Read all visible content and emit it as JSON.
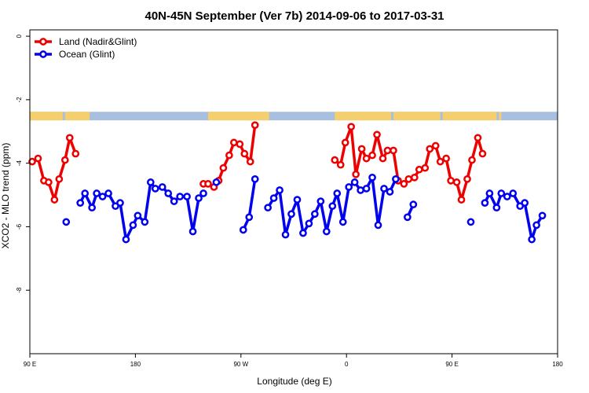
{
  "chart_data": {
    "type": "line",
    "title": "40N-45N September (Ver 7b)   2014-09-06 to 2017-03-31",
    "xlabel": "Longitude (deg E)",
    "ylabel": "XCO2 - MLO trend (ppm)",
    "xlim": [
      90,
      540
    ],
    "ylim": [
      -10,
      0.2
    ],
    "x_ticks": [
      90,
      180,
      270,
      360,
      450,
      540
    ],
    "x_tick_labels": [
      "90 E",
      "180",
      "90 W",
      "0",
      "90 E",
      "180"
    ],
    "y_ticks": [
      0,
      -2,
      -4,
      -6,
      -8
    ],
    "y_tick_labels": [
      "0",
      "-2",
      "-4",
      "-6",
      "-8"
    ],
    "grid": false,
    "legend_position": "top-left",
    "series": [
      {
        "name": "Land (Nadir&Glint)",
        "color": "#ee0000",
        "segments": [
          [
            [
              92,
              -3.95
            ],
            [
              97,
              -3.85
            ],
            [
              102,
              -4.55
            ],
            [
              106,
              -4.6
            ],
            [
              111,
              -5.15
            ],
            [
              115,
              -4.5
            ],
            [
              120,
              -3.9
            ],
            [
              124,
              -3.2
            ],
            [
              129,
              -3.7
            ]
          ],
          [
            [
              238,
              -4.65
            ],
            [
              242,
              -4.65
            ],
            [
              247,
              -4.75
            ],
            [
              251,
              -4.55
            ],
            [
              255,
              -4.15
            ],
            [
              260,
              -3.75
            ],
            [
              264,
              -3.35
            ],
            [
              269,
              -3.4
            ],
            [
              273,
              -3.7
            ],
            [
              278,
              -3.95
            ],
            [
              282,
              -2.8
            ]
          ],
          [
            [
              350,
              -3.9
            ],
            [
              355,
              -4.05
            ],
            [
              359,
              -3.35
            ],
            [
              364,
              -2.85
            ],
            [
              368,
              -4.35
            ],
            [
              373,
              -3.55
            ],
            [
              377,
              -3.85
            ],
            [
              382,
              -3.75
            ],
            [
              386,
              -3.1
            ],
            [
              391,
              -3.85
            ],
            [
              395,
              -3.6
            ],
            [
              400,
              -3.6
            ],
            [
              404,
              -4.55
            ],
            [
              409,
              -4.65
            ],
            [
              413,
              -4.5
            ],
            [
              418,
              -4.45
            ],
            [
              422,
              -4.2
            ],
            [
              427,
              -4.15
            ],
            [
              431,
              -3.55
            ],
            [
              436,
              -3.45
            ],
            [
              440,
              -3.95
            ],
            [
              445,
              -3.85
            ],
            [
              449,
              -4.55
            ],
            [
              454,
              -4.6
            ],
            [
              458,
              -5.15
            ],
            [
              463,
              -4.5
            ],
            [
              467,
              -3.9
            ],
            [
              472,
              -3.2
            ],
            [
              476,
              -3.7
            ]
          ]
        ]
      },
      {
        "name": "Ocean (Glint)",
        "color": "#0000ee",
        "segments": [
          [
            [
              121,
              -5.85
            ]
          ],
          [
            [
              133,
              -5.25
            ],
            [
              137,
              -4.95
            ],
            [
              143,
              -5.4
            ],
            [
              147,
              -4.95
            ],
            [
              152,
              -5.05
            ],
            [
              157,
              -4.95
            ],
            [
              163,
              -5.35
            ],
            [
              167,
              -5.25
            ],
            [
              172,
              -6.4
            ],
            [
              178,
              -5.95
            ],
            [
              182,
              -5.65
            ],
            [
              188,
              -5.85
            ],
            [
              193,
              -4.6
            ],
            [
              197,
              -4.8
            ],
            [
              203,
              -4.75
            ],
            [
              208,
              -4.95
            ],
            [
              213,
              -5.2
            ],
            [
              218,
              -5.05
            ],
            [
              224,
              -5.05
            ],
            [
              229,
              -6.15
            ],
            [
              234,
              -5.1
            ],
            [
              238,
              -4.95
            ]
          ],
          [
            [
              249,
              -4.6
            ]
          ],
          [
            [
              272,
              -6.1
            ],
            [
              277,
              -5.7
            ],
            [
              282,
              -4.5
            ]
          ],
          [
            [
              293,
              -5.4
            ],
            [
              298,
              -5.1
            ],
            [
              303,
              -4.85
            ],
            [
              308,
              -6.25
            ],
            [
              313,
              -5.6
            ],
            [
              318,
              -5.15
            ],
            [
              323,
              -6.2
            ],
            [
              328,
              -5.9
            ],
            [
              333,
              -5.6
            ],
            [
              338,
              -5.2
            ],
            [
              343,
              -6.15
            ],
            [
              348,
              -5.35
            ],
            [
              352,
              -4.95
            ],
            [
              357,
              -5.85
            ],
            [
              362,
              -4.75
            ],
            [
              367,
              -4.6
            ],
            [
              372,
              -4.85
            ],
            [
              377,
              -4.8
            ],
            [
              382,
              -4.45
            ],
            [
              387,
              -5.95
            ],
            [
              392,
              -4.8
            ],
            [
              397,
              -4.9
            ],
            [
              402,
              -4.5
            ]
          ],
          [
            [
              412,
              -5.7
            ],
            [
              417,
              -5.3
            ]
          ],
          [
            [
              466,
              -5.85
            ]
          ],
          [
            [
              478,
              -5.25
            ],
            [
              482,
              -4.95
            ],
            [
              488,
              -5.4
            ],
            [
              492,
              -4.95
            ],
            [
              497,
              -5.05
            ],
            [
              502,
              -4.95
            ],
            [
              508,
              -5.35
            ],
            [
              512,
              -5.25
            ],
            [
              518,
              -6.4
            ],
            [
              522,
              -5.95
            ],
            [
              527,
              -5.65
            ]
          ]
        ]
      }
    ],
    "land_mask_band": {
      "y_range": [
        -2.38,
        -2.65
      ],
      "land_color": "#f5cf6e",
      "ocean_color": "#a9bfe0",
      "land_ranges": [
        [
          90,
          118
        ],
        [
          120,
          141
        ],
        [
          242,
          294
        ],
        [
          350,
          398
        ],
        [
          400,
          440
        ],
        [
          442,
          488
        ],
        [
          490,
          492
        ]
      ]
    }
  }
}
